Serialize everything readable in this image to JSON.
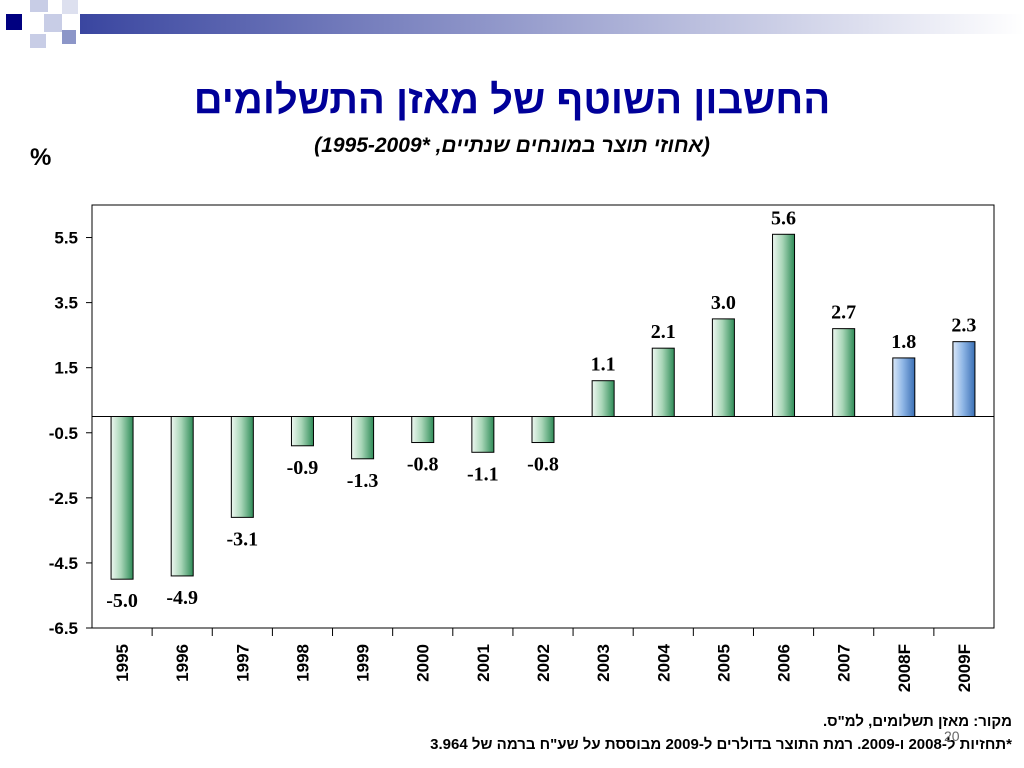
{
  "slide": {
    "title": "החשבון השוטף של מאזן התשלומים",
    "subtitle": "(אחוזי תוצר במונחים שנתיים, *1995-2009)",
    "y_unit": "%",
    "source": "מקור: מאזן תשלומים, למ\"ס.",
    "note": "*תחזיות ל-2008 ו-2009. רמת התוצר בדולרים ל-2009 מבוססת על שע\"ח ברמה של 3.964",
    "page_number": "20"
  },
  "colors": {
    "title": "#000099",
    "actual_bar_light": "#eef7f1",
    "actual_bar_dark": "#2e8b57",
    "forecast_bar_light": "#dbe8f8",
    "forecast_bar_dark": "#3a6fb5",
    "deco_dark": "#000080",
    "deco_mid": "#8c96c8",
    "deco_light": "#c8cde6"
  },
  "chart_data": {
    "type": "bar",
    "categories": [
      "1995",
      "1996",
      "1997",
      "1998",
      "1999",
      "2000",
      "2001",
      "2002",
      "2003",
      "2004",
      "2005",
      "2006",
      "2007",
      "2008F",
      "2009F"
    ],
    "values": [
      -5.0,
      -4.9,
      -3.1,
      -0.9,
      -1.3,
      -0.8,
      -1.1,
      -0.8,
      1.1,
      2.1,
      3.0,
      5.6,
      2.7,
      1.8,
      2.3
    ],
    "value_labels": [
      "-5.0",
      "-4.9",
      "-3.1",
      "-0.9",
      "-1.3",
      "-0.8",
      "-1.1",
      "-0.8",
      "1.1",
      "2.1",
      "3.0",
      "5.6",
      "2.7",
      "1.8",
      "2.3"
    ],
    "forecast": [
      false,
      false,
      false,
      false,
      false,
      false,
      false,
      false,
      false,
      false,
      false,
      false,
      false,
      true,
      true
    ],
    "yticks": [
      5.5,
      3.5,
      1.5,
      -0.5,
      -2.5,
      -4.5,
      -6.5
    ],
    "ytick_labels": [
      "5.5",
      "3.5",
      "1.5",
      "-0.5",
      "-2.5",
      "-4.5",
      "-6.5"
    ],
    "ylim": [
      -6.5,
      6.5
    ],
    "grid": false,
    "legend": "none"
  }
}
